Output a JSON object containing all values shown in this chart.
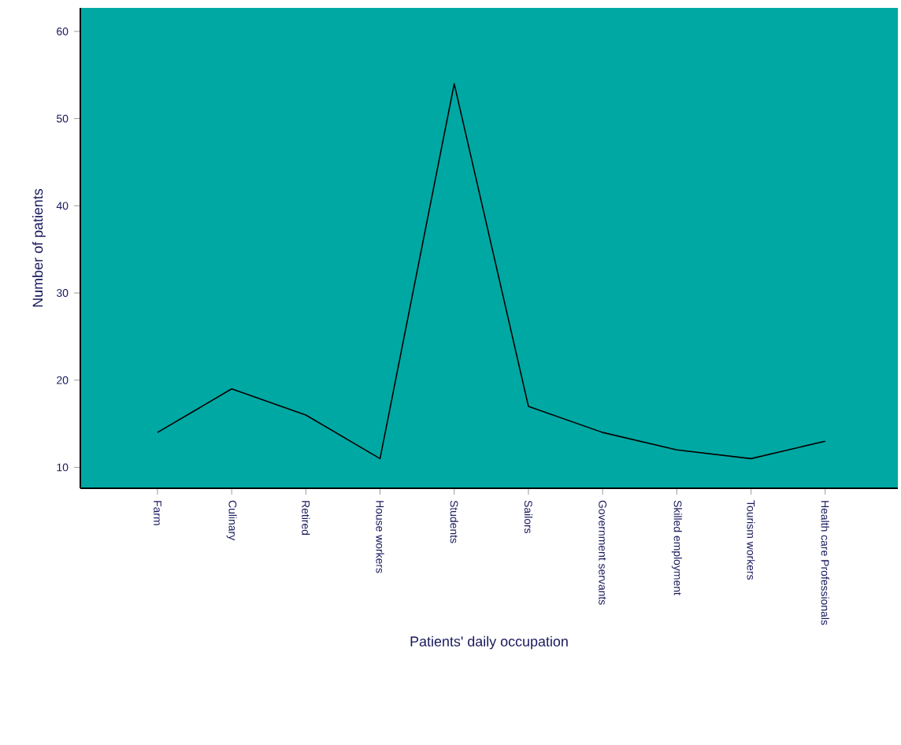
{
  "chart_data": {
    "type": "line",
    "xlabel": "Patients' daily occupation",
    "ylabel": "Number of patients",
    "categories": [
      "Farm",
      "Culinary",
      "Retired",
      "House workers",
      "Students",
      "Sailors",
      "Government servants",
      "Skilled employment",
      "Tourism workers",
      "Health care Professionals"
    ],
    "series": [
      {
        "color": "#000000",
        "values": [
          14,
          19,
          16,
          11,
          54,
          17,
          14,
          12,
          11,
          13
        ]
      }
    ],
    "ylim": [
      7.6,
      62.7
    ],
    "yticks": [
      10,
      20,
      30,
      40,
      50,
      60
    ],
    "marker": "none",
    "line_style": "solid"
  }
}
